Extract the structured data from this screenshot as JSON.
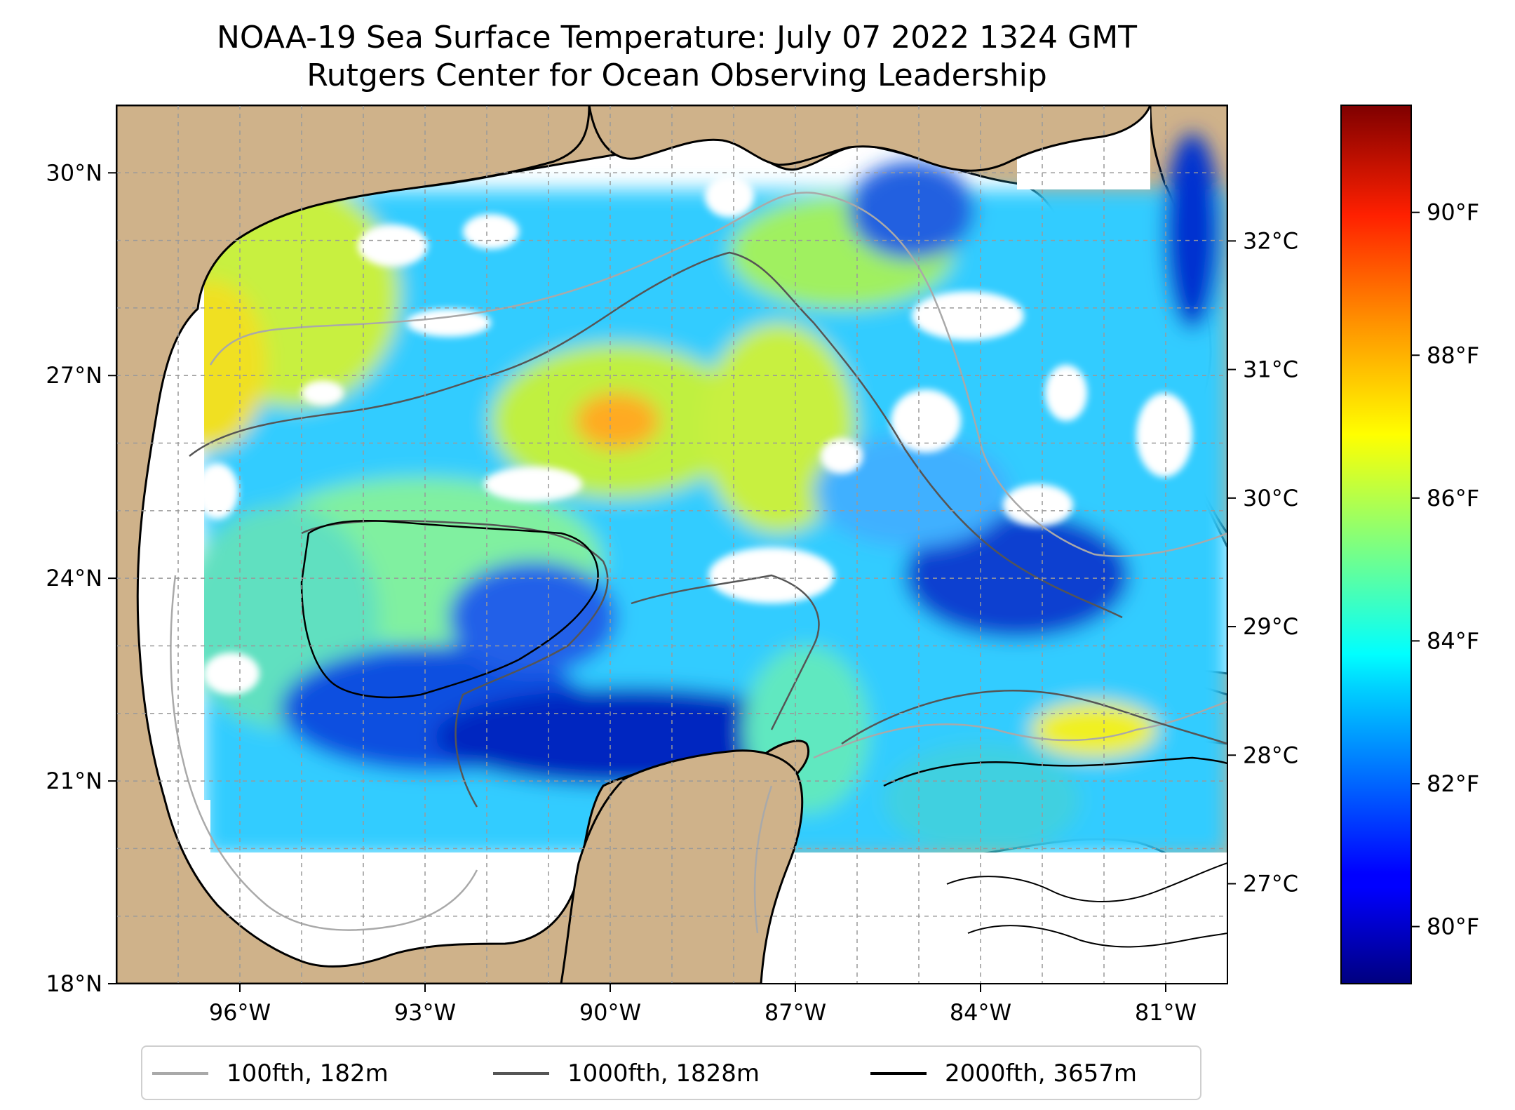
{
  "title": {
    "line1": "NOAA-19 Sea Surface Temperature: July 07 2022 1324 GMT",
    "line2": "Rutgers Center for Ocean Observing Leadership"
  },
  "map": {
    "lon_range": [
      -98.0,
      -80.0
    ],
    "lat_range": [
      18.0,
      31.0
    ],
    "lon_ticks": [
      {
        "value": -96,
        "label": "96°W"
      },
      {
        "value": -93,
        "label": "93°W"
      },
      {
        "value": -90,
        "label": "90°W"
      },
      {
        "value": -87,
        "label": "87°W"
      },
      {
        "value": -84,
        "label": "84°W"
      },
      {
        "value": -81,
        "label": "81°W"
      }
    ],
    "lat_ticks": [
      {
        "value": 18,
        "label": "18°N"
      },
      {
        "value": 21,
        "label": "21°N"
      },
      {
        "value": 24,
        "label": "24°N"
      },
      {
        "value": 27,
        "label": "27°N"
      },
      {
        "value": 30,
        "label": "30°N"
      }
    ],
    "gridlines": "dashed",
    "land_color": "#CFB28A",
    "nodata_color": "#FFFFFF"
  },
  "colorbar": {
    "colormap": "jet",
    "celsius_ticks": [
      {
        "value": 27,
        "label": "27°C"
      },
      {
        "value": 28,
        "label": "28°C"
      },
      {
        "value": 29,
        "label": "29°C"
      },
      {
        "value": 30,
        "label": "30°C"
      },
      {
        "value": 31,
        "label": "31°C"
      },
      {
        "value": 32,
        "label": "32°C"
      }
    ],
    "fahrenheit_ticks": [
      {
        "value": 80,
        "label": "80°F"
      },
      {
        "value": 82,
        "label": "82°F"
      },
      {
        "value": 84,
        "label": "84°F"
      },
      {
        "value": 86,
        "label": "86°F"
      },
      {
        "value": 88,
        "label": "88°F"
      },
      {
        "value": 90,
        "label": "90°F"
      }
    ]
  },
  "legend": {
    "items": [
      {
        "label": "100fth, 182m",
        "color": "#A9A9A9"
      },
      {
        "label": "1000fth, 1828m",
        "color": "#555555"
      },
      {
        "label": "2000fth, 3657m",
        "color": "#000000"
      }
    ]
  }
}
